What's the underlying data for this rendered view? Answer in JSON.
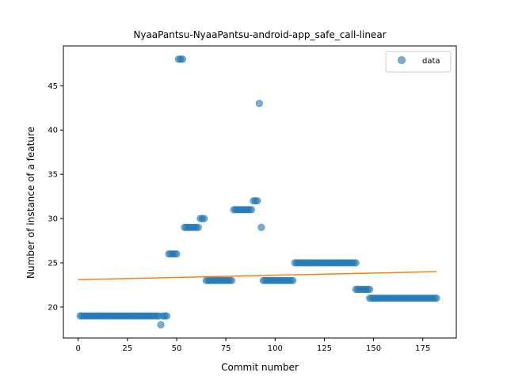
{
  "chart_data": {
    "type": "scatter",
    "title": "NyaaPantsu-NyaaPantsu-android-app_safe_call-linear",
    "xlabel": "Commit number",
    "ylabel": "Number of instance of a feature",
    "xlim": [
      -7.5,
      192
    ],
    "ylim": [
      16.5,
      49.5
    ],
    "xticks": [
      0,
      25,
      50,
      75,
      100,
      125,
      150,
      175
    ],
    "yticks": [
      20,
      25,
      30,
      35,
      40,
      45
    ],
    "legend": {
      "position": "top-right",
      "entries": [
        "data"
      ]
    },
    "colors": {
      "data": "#1f77b4",
      "fit": "#ff7f0e"
    },
    "series": [
      {
        "name": "data",
        "kind": "scatter",
        "segments": [
          {
            "x_start": 1,
            "x_end": 41,
            "y": 19
          },
          {
            "x_start": 42,
            "x_end": 42,
            "y": 18
          },
          {
            "x_start": 43,
            "x_end": 45,
            "y": 19
          },
          {
            "x_start": 46,
            "x_end": 50,
            "y": 26
          },
          {
            "x_start": 51,
            "x_end": 53,
            "y": 48
          },
          {
            "x_start": 54,
            "x_end": 61,
            "y": 29
          },
          {
            "x_start": 62,
            "x_end": 64,
            "y": 30
          },
          {
            "x_start": 65,
            "x_end": 78,
            "y": 23
          },
          {
            "x_start": 79,
            "x_end": 88,
            "y": 31
          },
          {
            "x_start": 89,
            "x_end": 91,
            "y": 32
          },
          {
            "x_start": 92,
            "x_end": 92,
            "y": 43
          },
          {
            "x_start": 93,
            "x_end": 93,
            "y": 29
          },
          {
            "x_start": 94,
            "x_end": 109,
            "y": 23
          },
          {
            "x_start": 110,
            "x_end": 141,
            "y": 25
          },
          {
            "x_start": 141,
            "x_end": 148,
            "y": 22
          },
          {
            "x_start": 148,
            "x_end": 182,
            "y": 21
          }
        ]
      },
      {
        "name": "",
        "kind": "line",
        "x": [
          0,
          182
        ],
        "y": [
          23.1,
          24.0
        ]
      }
    ]
  }
}
